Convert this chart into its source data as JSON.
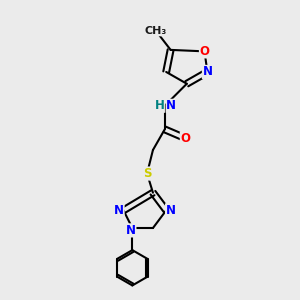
{
  "background_color": "#ebebeb",
  "bond_color": "#000000",
  "atom_colors": {
    "N": "#0000ff",
    "O": "#ff0000",
    "S": "#cccc00",
    "H": "#008080",
    "C": "#000000"
  },
  "figsize": [
    3.0,
    3.0
  ],
  "dpi": 100
}
